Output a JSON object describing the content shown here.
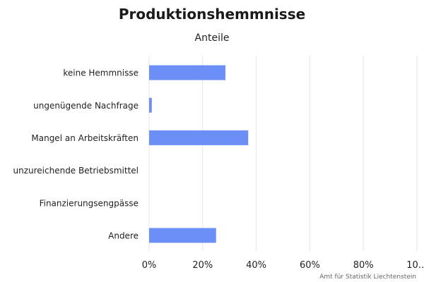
{
  "chart_data": {
    "type": "bar",
    "orientation": "horizontal",
    "title": "Produktionshemmnisse",
    "subtitle": "Anteile",
    "categories": [
      "keine Hemmnisse",
      "ungenügende Nachfrage",
      "Mangel an Arbeitskräften",
      "unzureichende Betriebsmittel",
      "Finanzierungsengpässe",
      "Andere"
    ],
    "values": [
      28.5,
      1,
      37,
      0,
      0,
      25
    ],
    "x_ticks": [
      "0%",
      "20%",
      "40%",
      "60%",
      "80%",
      "10…"
    ],
    "xlim": [
      0,
      100
    ],
    "grid": true,
    "legend": "none",
    "color": "#6b8ef7",
    "credit": "Amt für Statistik Liechtenstein"
  }
}
